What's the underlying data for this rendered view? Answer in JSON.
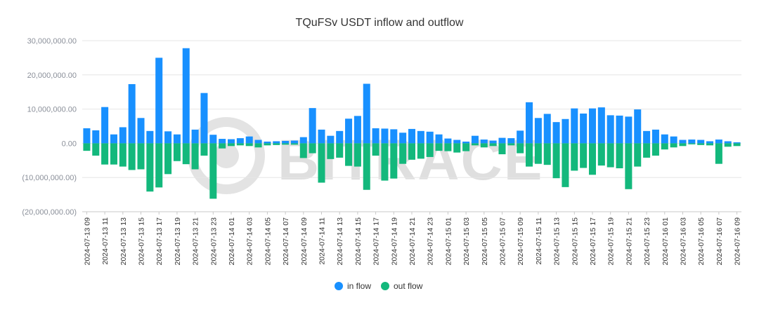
{
  "chart_data": {
    "type": "bar",
    "title": "TQuFSv USDT inflow and outflow",
    "watermark": "BITRACE",
    "ylim": [
      -20000000,
      30000000
    ],
    "y_ticks": [
      30000000,
      20000000,
      10000000,
      0,
      -10000000,
      -20000000
    ],
    "y_tick_labels": [
      "30,000,000.00",
      "20,000,000.00",
      "10,000,000.00",
      "0.00",
      "(10,000,000.00)",
      "(20,000,000.00)"
    ],
    "x_tick_labels": [
      "2024-07-13 09",
      "2024-07-13 11",
      "2024-07-13 13",
      "2024-07-13 15",
      "2024-07-13 17",
      "2024-07-13 19",
      "2024-07-13 21",
      "2024-07-13 23",
      "2024-07-14 01",
      "2024-07-14 03",
      "2024-07-14 05",
      "2024-07-14 07",
      "2024-07-14 09",
      "2024-07-14 11",
      "2024-07-14 13",
      "2024-07-14 15",
      "2024-07-14 17",
      "2024-07-14 19",
      "2024-07-14 21",
      "2024-07-14 23",
      "2024-07-15 01",
      "2024-07-15 03",
      "2024-07-15 05",
      "2024-07-15 07",
      "2024-07-15 09",
      "2024-07-15 11",
      "2024-07-15 13",
      "2024-07-15 15",
      "2024-07-15 17",
      "2024-07-15 19",
      "2024-07-15 21",
      "2024-07-15 23",
      "2024-07-16 01",
      "2024-07-16 03",
      "2024-07-16 05",
      "2024-07-16 07",
      "2024-07-16 09"
    ],
    "bar_count": 73,
    "colors": {
      "in_flow": "#1890ff",
      "out_flow": "#13b87c",
      "grid": "#e6e6e6",
      "axis": "#c8c8c8"
    },
    "legend_position": "bottom",
    "series": [
      {
        "name": "in flow",
        "values": [
          4.4,
          3.8,
          10.6,
          2.6,
          4.7,
          17.3,
          7.4,
          3.6,
          25.0,
          3.5,
          2.6,
          27.8,
          4.0,
          14.7,
          2.5,
          1.3,
          1.2,
          1.5,
          2.0,
          1.0,
          0.5,
          0.6,
          0.7,
          0.8,
          1.8,
          10.3,
          4.0,
          2.2,
          3.6,
          7.2,
          8.0,
          17.4,
          4.4,
          4.3,
          4.1,
          3.1,
          4.2,
          3.6,
          3.4,
          2.6,
          1.4,
          1.0,
          0.5,
          2.2,
          1.1,
          0.8,
          1.6,
          1.5,
          3.7,
          12.0,
          7.4,
          8.6,
          6.2,
          7.1,
          10.2,
          8.7,
          10.2,
          10.5,
          8.2,
          8.1,
          7.8,
          9.9,
          3.6,
          4.0,
          2.6,
          2.0,
          1.0,
          1.1,
          1.0,
          0.6,
          1.1,
          0.6,
          0.3
        ]
      },
      {
        "name": "out flow",
        "values": [
          -2.2,
          -3.6,
          -6.2,
          -6.2,
          -6.8,
          -7.8,
          -7.6,
          -14.1,
          -12.9,
          -9.0,
          -5.2,
          -6.1,
          -7.6,
          -3.6,
          -16.2,
          -1.5,
          -0.8,
          -0.6,
          -0.8,
          -1.2,
          -0.6,
          -0.5,
          -0.4,
          -0.4,
          -4.3,
          -2.9,
          -11.5,
          -4.6,
          -4.2,
          -6.6,
          -6.8,
          -13.6,
          -3.6,
          -10.9,
          -10.3,
          -6.0,
          -4.8,
          -4.5,
          -4.0,
          -2.2,
          -2.3,
          -2.7,
          -2.3,
          -0.6,
          -1.2,
          -0.8,
          -3.2,
          -0.6,
          -2.9,
          -6.8,
          -6.0,
          -6.3,
          -10.2,
          -12.8,
          -8.0,
          -7.2,
          -9.2,
          -6.5,
          -7.0,
          -7.3,
          -13.4,
          -6.8,
          -4.2,
          -3.6,
          -1.8,
          -1.2,
          -0.8,
          -0.3,
          -0.5,
          -0.6,
          -6.0,
          -1.0,
          -0.8
        ]
      }
    ],
    "unit_multiplier": 1000000
  }
}
